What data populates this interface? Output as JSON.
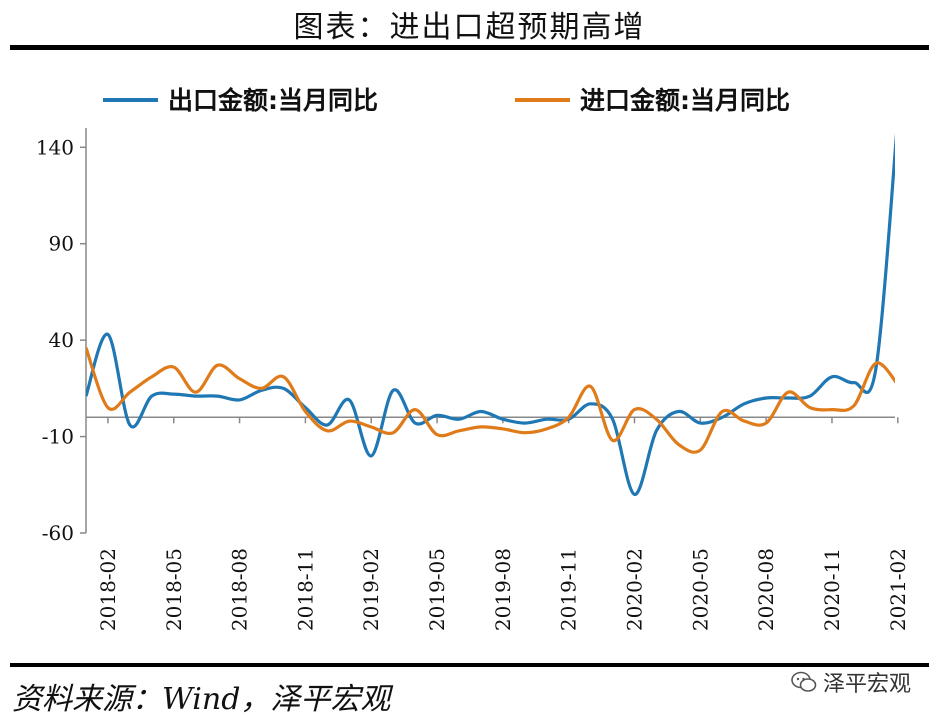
{
  "header": {
    "title": "图表：进出口超预期高增"
  },
  "footer": {
    "source": "资料来源：Wind，泽平宏观",
    "watermark": "泽平宏观"
  },
  "colors": {
    "export": "#1f77b4",
    "import": "#e07b1a",
    "axis": "#888888"
  },
  "chart_data": {
    "type": "line",
    "title": "图表：进出口超预期高增",
    "xlabel": "",
    "ylabel": "",
    "ylim": [
      -60,
      150
    ],
    "yticks": [
      -60,
      -10,
      40,
      90,
      140
    ],
    "grid": false,
    "legend": "top",
    "x": [
      "2018-01",
      "2018-02",
      "2018-03",
      "2018-04",
      "2018-05",
      "2018-06",
      "2018-07",
      "2018-08",
      "2018-09",
      "2018-10",
      "2018-11",
      "2018-12",
      "2019-01",
      "2019-02",
      "2019-03",
      "2019-04",
      "2019-05",
      "2019-06",
      "2019-07",
      "2019-08",
      "2019-09",
      "2019-10",
      "2019-11",
      "2019-12",
      "2020-01",
      "2020-02",
      "2020-03",
      "2020-04",
      "2020-05",
      "2020-06",
      "2020-07",
      "2020-08",
      "2020-09",
      "2020-10",
      "2020-11",
      "2020-12",
      "2021-01",
      "2021-02"
    ],
    "xtick_labels": [
      "2018-02",
      "2018-05",
      "2018-08",
      "2018-11",
      "2019-02",
      "2019-05",
      "2019-08",
      "2019-11",
      "2020-02",
      "2020-05",
      "2020-08",
      "2020-11",
      "2021-02"
    ],
    "series": [
      {
        "name": "出口金额:当月同比",
        "values": [
          11,
          43,
          -4,
          11,
          12,
          11,
          11,
          9,
          14,
          15,
          5,
          -4,
          9,
          -20,
          14,
          -3,
          1,
          -1,
          3,
          -1,
          -3,
          -1,
          -1,
          7,
          -1,
          -40,
          -7,
          3,
          -3,
          0,
          7,
          10,
          10,
          11,
          21,
          18,
          25,
          155
        ]
      },
      {
        "name": "进口金额:当月同比",
        "values": [
          36,
          5,
          13,
          21,
          26,
          13,
          27,
          20,
          15,
          21,
          3,
          -7,
          -2,
          -5,
          -8,
          4,
          -9,
          -7,
          -5,
          -6,
          -8,
          -6,
          0,
          16,
          -12,
          4,
          -1,
          -14,
          -17,
          3,
          -2,
          -3,
          13,
          5,
          4,
          6,
          28,
          17
        ]
      }
    ]
  }
}
